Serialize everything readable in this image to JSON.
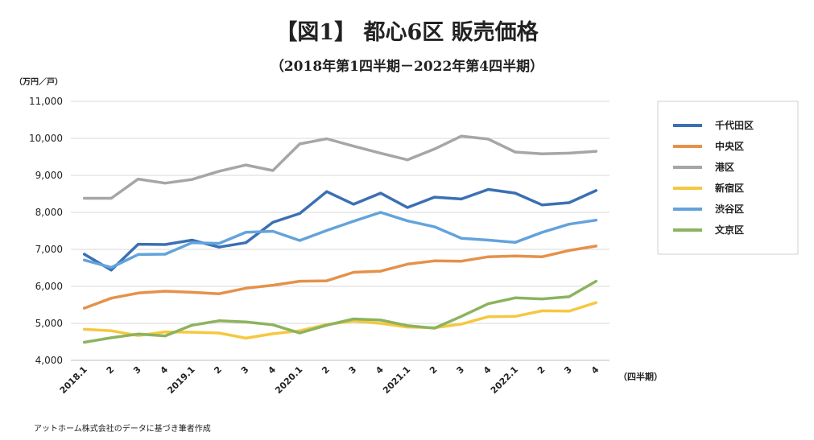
{
  "chart_data": {
    "type": "line",
    "title": "【図1】 都心6区 販売価格",
    "subtitle": "（2018年第1四半期－2022年第4四半期）",
    "ylabel": "（万円／戸）",
    "xlabel": "（四半期）",
    "source": "アットホーム株式会社のデータに基づき筆者作成",
    "ylim": [
      4000,
      11000
    ],
    "yticks": [
      "4,000",
      "5,000",
      "6,000",
      "7,000",
      "8,000",
      "9,000",
      "10,000",
      "11,000"
    ],
    "categories": [
      "2018.1",
      "2",
      "3",
      "4",
      "2019.1",
      "2",
      "3",
      "4",
      "2020.1",
      "2",
      "3",
      "4",
      "2021.1",
      "2",
      "3",
      "4",
      "2022.1",
      "2",
      "3",
      "4"
    ],
    "grid": true,
    "legend_position": "right",
    "series": [
      {
        "name": "千代田区",
        "color": "#3b70b3",
        "values": [
          6870,
          6440,
          7140,
          7130,
          7250,
          7060,
          7180,
          7730,
          7970,
          8560,
          8220,
          8520,
          8130,
          8410,
          8360,
          8620,
          8520,
          8200,
          8260,
          8590
        ]
      },
      {
        "name": "中央区",
        "color": "#e5914a",
        "values": [
          5410,
          5680,
          5820,
          5870,
          5840,
          5800,
          5950,
          6030,
          6140,
          6150,
          6380,
          6410,
          6600,
          6690,
          6680,
          6800,
          6820,
          6800,
          6970,
          7090
        ]
      },
      {
        "name": "港区",
        "color": "#a6a6a6",
        "values": [
          8380,
          8380,
          8900,
          8790,
          8890,
          9110,
          9280,
          9130,
          9850,
          9990,
          9790,
          9600,
          9420,
          9710,
          10060,
          9980,
          9630,
          9580,
          9600,
          9650
        ]
      },
      {
        "name": "新宿区",
        "color": "#f5c842",
        "values": [
          4840,
          4800,
          4670,
          4770,
          4760,
          4740,
          4600,
          4720,
          4800,
          4970,
          5060,
          5000,
          4900,
          4880,
          4980,
          5180,
          5190,
          5340,
          5330,
          5560
        ]
      },
      {
        "name": "渋谷区",
        "color": "#63a3dc",
        "values": [
          6710,
          6510,
          6860,
          6870,
          7180,
          7160,
          7460,
          7490,
          7240,
          7510,
          7760,
          8000,
          7770,
          7610,
          7300,
          7250,
          7190,
          7460,
          7680,
          7790
        ]
      },
      {
        "name": "文京区",
        "color": "#8cb35e",
        "values": [
          4490,
          4610,
          4710,
          4660,
          4950,
          5070,
          5040,
          4960,
          4740,
          4950,
          5120,
          5090,
          4940,
          4870,
          5190,
          5530,
          5690,
          5660,
          5720,
          6140
        ]
      }
    ]
  }
}
